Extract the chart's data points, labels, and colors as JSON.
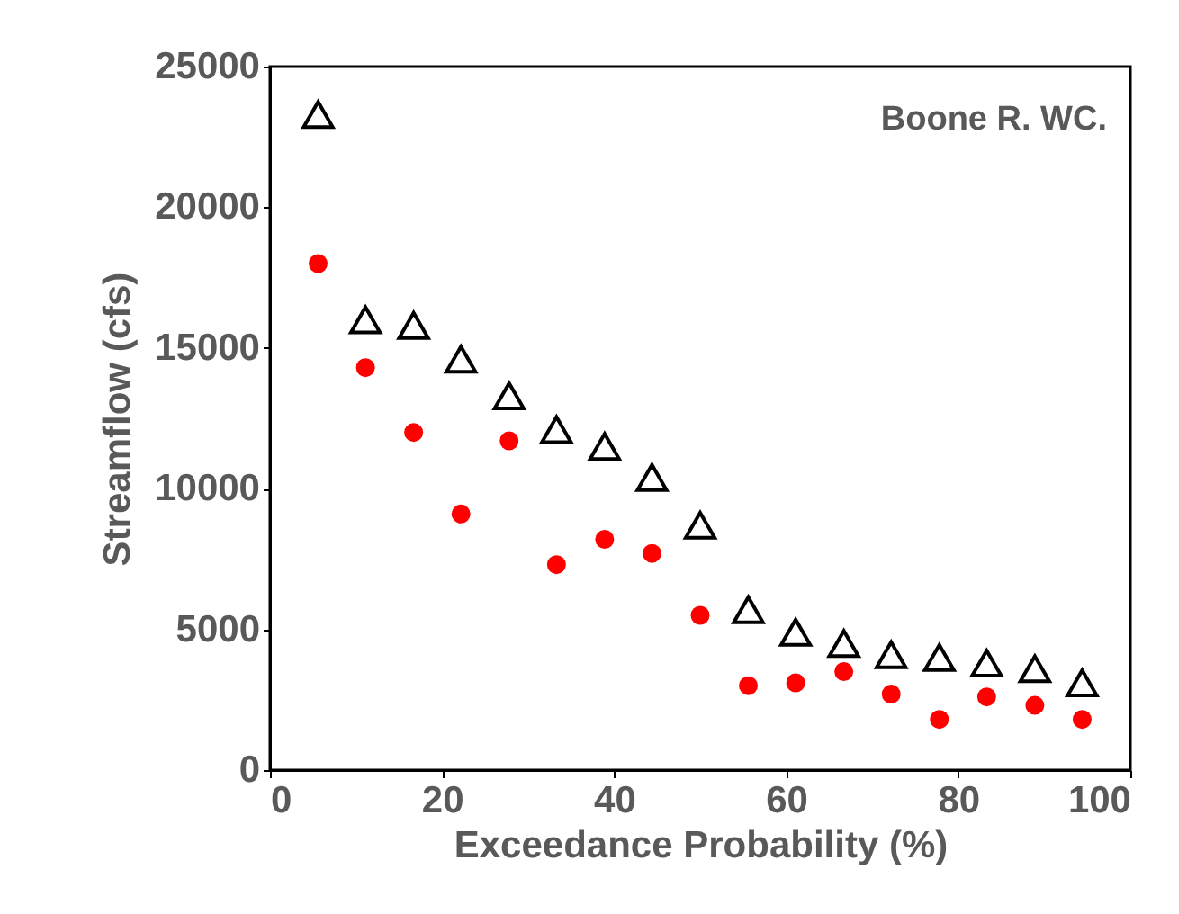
{
  "chart_data": {
    "type": "scatter",
    "xlabel": "Exceedance Probability (%)",
    "ylabel": "Streamflow (cfs)",
    "annotations": [
      "Boone R. WC."
    ],
    "x": [
      5.6,
      11.1,
      16.7,
      22.2,
      27.8,
      33.3,
      38.9,
      44.4,
      50.0,
      55.6,
      61.1,
      66.7,
      72.2,
      77.8,
      83.3,
      88.9,
      94.4
    ],
    "series": [
      {
        "color": "#000000",
        "marker": "triangle",
        "values": [
          23300,
          16000,
          15800,
          14600,
          13300,
          12100,
          11500,
          10400,
          8700,
          5700,
          4900,
          4500,
          4100,
          4000,
          3800,
          3600,
          3100
        ]
      },
      {
        "color": "#ff0000",
        "marker": "circle",
        "values": [
          18000,
          14300,
          12000,
          9100,
          11700,
          7300,
          8200,
          7700,
          5500,
          3000,
          3100,
          3500,
          2700,
          1800,
          2600,
          2300,
          1800
        ]
      }
    ],
    "xlim": [
      0,
      100
    ],
    "xticks": [
      0,
      20,
      40,
      60,
      80,
      100
    ],
    "ylim": [
      0,
      25000
    ],
    "yticks": [
      0,
      5000,
      10000,
      15000,
      20000,
      25000
    ],
    "grid": false
  }
}
